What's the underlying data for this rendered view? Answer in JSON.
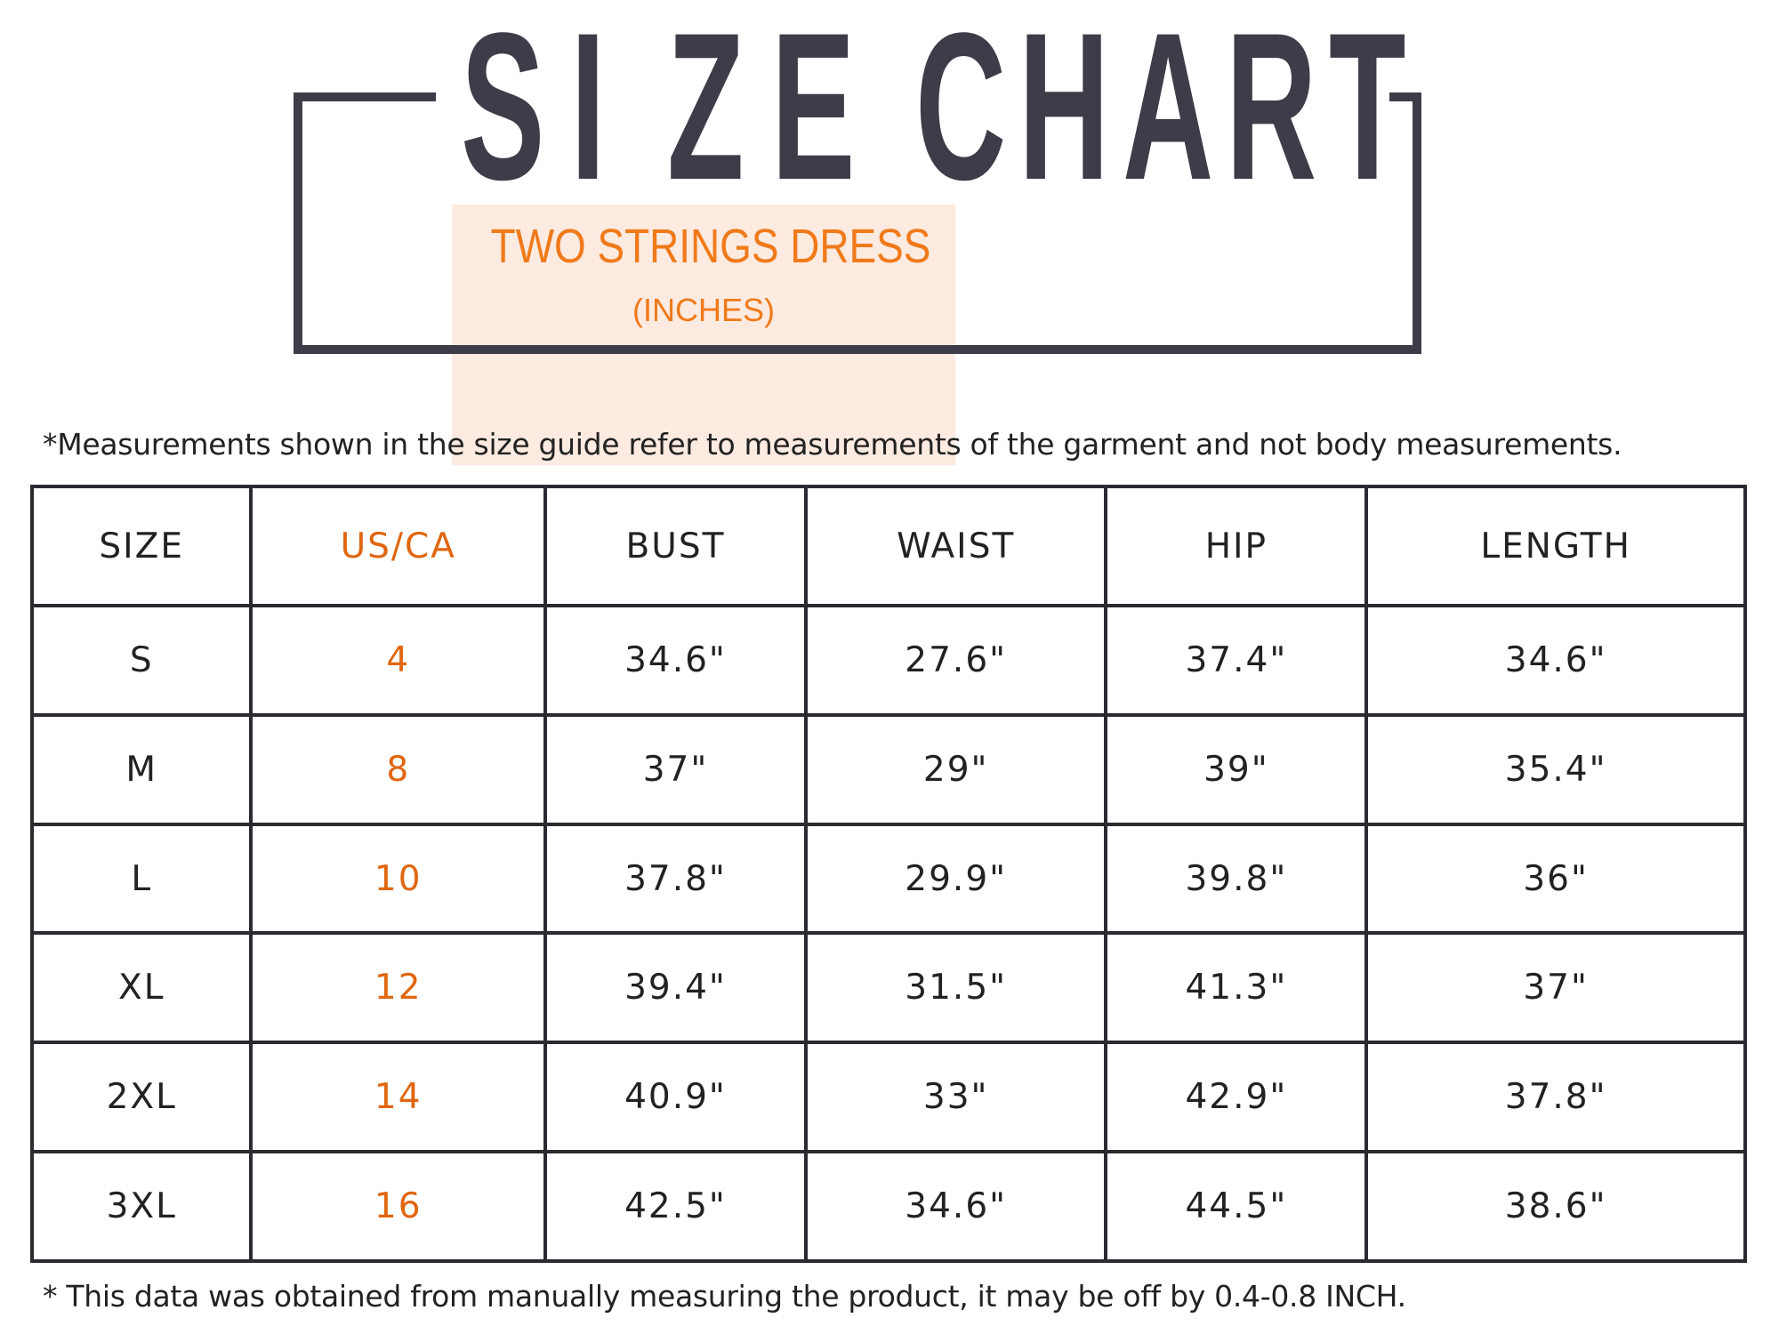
{
  "header": {
    "title_letters": [
      "S",
      "I",
      "Z",
      "E",
      "",
      "C",
      "H",
      "A",
      "R",
      "T"
    ],
    "title": "SIZE CHART",
    "product": "TWO STRINGS DRESS",
    "unit": "(INCHES)"
  },
  "note": "*Measurements shown in the size guide refer to measurements of the garment and not body measurements.",
  "table": {
    "columns": [
      "SIZE",
      "US/CA",
      "BUST",
      "WAIST",
      "HIP",
      "LENGTH"
    ],
    "rows": [
      [
        "S",
        "4",
        "34.6\"",
        "27.6\"",
        "37.4\"",
        "34.6\""
      ],
      [
        "M",
        "8",
        "37\"",
        "29\"",
        "39\"",
        "35.4\""
      ],
      [
        "L",
        "10",
        "37.8\"",
        "29.9\"",
        "39.8\"",
        "36\""
      ],
      [
        "XL",
        "12",
        "39.4\"",
        "31.5\"",
        "41.3\"",
        "37\""
      ],
      [
        "2XL",
        "14",
        "40.9\"",
        "33\"",
        "42.9\"",
        "37.8\""
      ],
      [
        "3XL",
        "16",
        "42.5\"",
        "34.6\"",
        "44.5\"",
        "38.6\""
      ]
    ]
  },
  "footer": "* This data was obtained from manually measuring the product, it may be off by 0.4-0.8 INCH.",
  "colors": {
    "title": "#3d3c48",
    "accent": "#f07a1a",
    "highlight_box": "#fde6da"
  }
}
